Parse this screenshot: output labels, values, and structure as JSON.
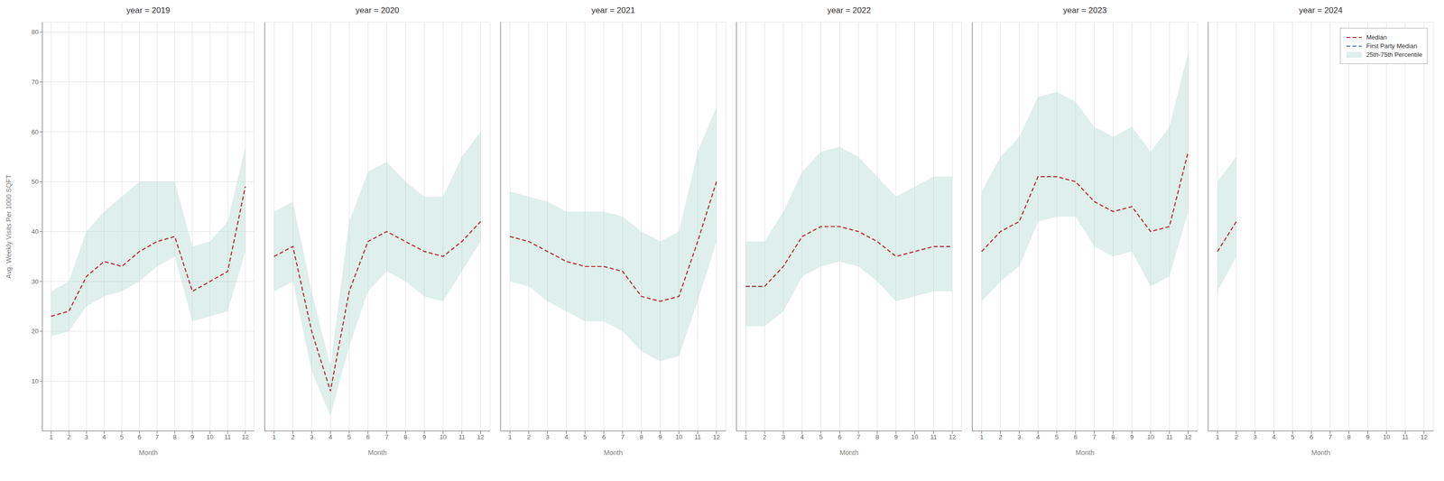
{
  "chart_data": [
    {
      "type": "line",
      "title": "year = 2019",
      "xlabel": "Month",
      "ylabel": "Avg. Weekly Visits Per 1000 SQFT",
      "x": [
        1,
        2,
        3,
        4,
        5,
        6,
        7,
        8,
        9,
        10,
        11,
        12
      ],
      "xlim": [
        0.5,
        12.5
      ],
      "xticks": [
        1,
        2,
        3,
        4,
        5,
        6,
        7,
        8,
        9,
        10,
        11,
        12
      ],
      "ylim": [
        0,
        82
      ],
      "yticks": [
        10,
        20,
        30,
        40,
        50,
        60,
        70,
        80
      ],
      "grid": true,
      "series": [
        {
          "name": "Median",
          "type": "line",
          "color": "#cc2222",
          "line_style": "dashed",
          "values": [
            23,
            24,
            31,
            34,
            33,
            36,
            38,
            39,
            28,
            30,
            32,
            49
          ]
        },
        {
          "name": "First Party Median",
          "type": "line",
          "color": "#4466bb",
          "line_style": "dashed",
          "values": [
            23,
            24,
            31,
            34,
            33,
            36,
            38,
            39,
            28,
            30,
            32,
            49
          ]
        },
        {
          "name": "25th-75th Percentile",
          "type": "area",
          "color": "#aed6cc",
          "values": [
            [
              19,
              28
            ],
            [
              20,
              30
            ],
            [
              25,
              40
            ],
            [
              27,
              44
            ],
            [
              28,
              47
            ],
            [
              30,
              50
            ],
            [
              33,
              50
            ],
            [
              35,
              50
            ],
            [
              22,
              37
            ],
            [
              23,
              38
            ],
            [
              24,
              42
            ],
            [
              36,
              57
            ]
          ]
        }
      ]
    },
    {
      "type": "line",
      "title": "year = 2020",
      "xlabel": "Month",
      "x": [
        1,
        2,
        3,
        4,
        5,
        6,
        7,
        8,
        9,
        10,
        11,
        12
      ],
      "xlim": [
        0.5,
        12.5
      ],
      "xticks": [
        1,
        2,
        3,
        4,
        5,
        6,
        7,
        8,
        9,
        10,
        11,
        12
      ],
      "ylim": [
        0,
        82
      ],
      "yticks": [
        10,
        20,
        30,
        40,
        50,
        60,
        70,
        80
      ],
      "grid": true,
      "tick_labels": "x",
      "series": [
        {
          "name": "Median",
          "type": "line",
          "color": "#cc2222",
          "line_style": "dashed",
          "values": [
            35,
            37,
            20,
            8,
            28,
            38,
            40,
            38,
            36,
            35,
            38,
            42
          ]
        },
        {
          "name": "First Party Median",
          "type": "line",
          "color": "#4466bb",
          "line_style": "dashed",
          "values": [
            35,
            37,
            20,
            8,
            28,
            38,
            40,
            38,
            36,
            35,
            38,
            42
          ]
        },
        {
          "name": "25th-75th Percentile",
          "type": "area",
          "color": "#aed6cc",
          "values": [
            [
              28,
              44
            ],
            [
              30,
              46
            ],
            [
              12,
              28
            ],
            [
              3,
              13
            ],
            [
              17,
              42
            ],
            [
              28,
              52
            ],
            [
              32,
              54
            ],
            [
              30,
              50
            ],
            [
              27,
              47
            ],
            [
              26,
              47
            ],
            [
              32,
              55
            ],
            [
              38,
              60
            ]
          ]
        }
      ]
    },
    {
      "type": "line",
      "title": "year = 2021",
      "xlabel": "Month",
      "x": [
        1,
        2,
        3,
        4,
        5,
        6,
        7,
        8,
        9,
        10,
        11,
        12
      ],
      "xlim": [
        0.5,
        12.5
      ],
      "xticks": [
        1,
        2,
        3,
        4,
        5,
        6,
        7,
        8,
        9,
        10,
        11,
        12
      ],
      "ylim": [
        0,
        82
      ],
      "yticks": [
        10,
        20,
        30,
        40,
        50,
        60,
        70,
        80
      ],
      "grid": true,
      "tick_labels": "x",
      "series": [
        {
          "name": "Median",
          "type": "line",
          "color": "#cc2222",
          "line_style": "dashed",
          "values": [
            39,
            38,
            36,
            34,
            33,
            33,
            32,
            27,
            26,
            27,
            38,
            50
          ]
        },
        {
          "name": "First Party Median",
          "type": "line",
          "color": "#4466bb",
          "line_style": "dashed",
          "values": [
            39,
            38,
            36,
            34,
            33,
            33,
            32,
            27,
            26,
            27,
            38,
            50
          ]
        },
        {
          "name": "25th-75th Percentile",
          "type": "area",
          "color": "#aed6cc",
          "values": [
            [
              30,
              48
            ],
            [
              29,
              47
            ],
            [
              26,
              46
            ],
            [
              24,
              44
            ],
            [
              22,
              44
            ],
            [
              22,
              44
            ],
            [
              20,
              43
            ],
            [
              16,
              40
            ],
            [
              14,
              38
            ],
            [
              15,
              40
            ],
            [
              26,
              56
            ],
            [
              38,
              65
            ]
          ]
        }
      ]
    },
    {
      "type": "line",
      "title": "year = 2022",
      "xlabel": "Month",
      "x": [
        1,
        2,
        3,
        4,
        5,
        6,
        7,
        8,
        9,
        10,
        11,
        12
      ],
      "xlim": [
        0.5,
        12.5
      ],
      "xticks": [
        1,
        2,
        3,
        4,
        5,
        6,
        7,
        8,
        9,
        10,
        11,
        12
      ],
      "ylim": [
        0,
        82
      ],
      "yticks": [
        10,
        20,
        30,
        40,
        50,
        60,
        70,
        80
      ],
      "grid": true,
      "tick_labels": "x",
      "series": [
        {
          "name": "Median",
          "type": "line",
          "color": "#cc2222",
          "line_style": "dashed",
          "values": [
            29,
            29,
            33,
            39,
            41,
            41,
            40,
            38,
            35,
            36,
            37,
            37
          ]
        },
        {
          "name": "First Party Median",
          "type": "line",
          "color": "#4466bb",
          "line_style": "dashed",
          "values": [
            29,
            29,
            33,
            39,
            41,
            41,
            40,
            38,
            35,
            36,
            37,
            37
          ]
        },
        {
          "name": "25th-75th Percentile",
          "type": "area",
          "color": "#aed6cc",
          "values": [
            [
              21,
              38
            ],
            [
              21,
              38
            ],
            [
              24,
              44
            ],
            [
              31,
              52
            ],
            [
              33,
              56
            ],
            [
              34,
              57
            ],
            [
              33,
              55
            ],
            [
              30,
              51
            ],
            [
              26,
              47
            ],
            [
              27,
              49
            ],
            [
              28,
              51
            ],
            [
              28,
              51
            ]
          ]
        }
      ]
    },
    {
      "type": "line",
      "title": "year = 2023",
      "xlabel": "Month",
      "x": [
        1,
        2,
        3,
        4,
        5,
        6,
        7,
        8,
        9,
        10,
        11,
        12
      ],
      "xlim": [
        0.5,
        12.5
      ],
      "xticks": [
        1,
        2,
        3,
        4,
        5,
        6,
        7,
        8,
        9,
        10,
        11,
        12
      ],
      "ylim": [
        0,
        82
      ],
      "yticks": [
        10,
        20,
        30,
        40,
        50,
        60,
        70,
        80
      ],
      "grid": true,
      "tick_labels": "x",
      "series": [
        {
          "name": "Median",
          "type": "line",
          "color": "#cc2222",
          "line_style": "dashed",
          "values": [
            36,
            40,
            42,
            51,
            51,
            50,
            46,
            44,
            45,
            40,
            41,
            56
          ]
        },
        {
          "name": "First Party Median",
          "type": "line",
          "color": "#4466bb",
          "line_style": "dashed",
          "values": [
            36,
            40,
            42,
            51,
            51,
            50,
            46,
            44,
            45,
            40,
            41,
            56
          ]
        },
        {
          "name": "25th-75th Percentile",
          "type": "area",
          "color": "#aed6cc",
          "values": [
            [
              26,
              48
            ],
            [
              30,
              55
            ],
            [
              33,
              59
            ],
            [
              42,
              67
            ],
            [
              43,
              68
            ],
            [
              43,
              66
            ],
            [
              37,
              61
            ],
            [
              35,
              59
            ],
            [
              36,
              61
            ],
            [
              29,
              56
            ],
            [
              31,
              61
            ],
            [
              44,
              76
            ]
          ]
        }
      ]
    },
    {
      "type": "line",
      "title": "year = 2024",
      "xlabel": "Month",
      "x": [
        1,
        2,
        3,
        4,
        5,
        6,
        7,
        8,
        9,
        10,
        11,
        12
      ],
      "xlim": [
        0.5,
        12.5
      ],
      "xticks": [
        1,
        2,
        3,
        4,
        5,
        6,
        7,
        8,
        9,
        10,
        11,
        12
      ],
      "ylim": [
        0,
        82
      ],
      "yticks": [
        10,
        20,
        30,
        40,
        50,
        60,
        70,
        80
      ],
      "grid": true,
      "tick_labels": "x",
      "legend": "upper right",
      "series": [
        {
          "name": "Median",
          "type": "line",
          "color": "#cc2222",
          "line_style": "dashed",
          "values": [
            36,
            42,
            null,
            null,
            null,
            null,
            null,
            null,
            null,
            null,
            null,
            null
          ]
        },
        {
          "name": "First Party Median",
          "type": "line",
          "color": "#4466bb",
          "line_style": "dashed",
          "values": [
            36,
            42,
            null,
            null,
            null,
            null,
            null,
            null,
            null,
            null,
            null,
            null
          ]
        },
        {
          "name": "25th-75th Percentile",
          "type": "area",
          "color": "#aed6cc",
          "values": [
            [
              28,
              50
            ],
            [
              35,
              55
            ],
            null,
            null,
            null,
            null,
            null,
            null,
            null,
            null,
            null,
            null
          ]
        }
      ]
    }
  ]
}
